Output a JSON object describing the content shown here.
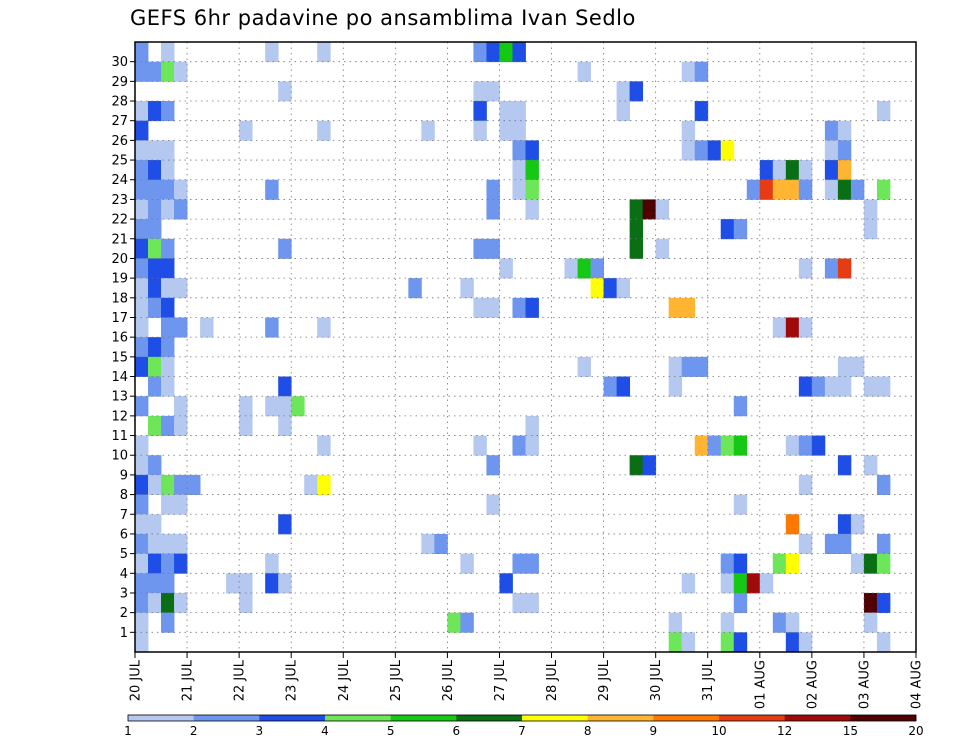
{
  "chart_data": {
    "type": "heatmap",
    "title": "GEFS 6hr padavine po ansamblima Ivan Sedlo",
    "x_tick_labels": [
      "20 JUL",
      "21 JUL",
      "22 JUL",
      "23 JUL",
      "24 JUL",
      "25 JUL",
      "26 JUL",
      "27 JUL",
      "28 JUL",
      "29 JUL",
      "30 JUL",
      "31 JUL",
      "01 AUG",
      "02 AUG",
      "03 AUG",
      "04 AUG"
    ],
    "y_tick_labels": [
      "1",
      "2",
      "3",
      "4",
      "5",
      "6",
      "7",
      "8",
      "9",
      "10",
      "11",
      "12",
      "13",
      "14",
      "15",
      "16",
      "17",
      "18",
      "19",
      "20",
      "21",
      "22",
      "23",
      "24",
      "25",
      "26",
      "27",
      "28",
      "29",
      "30"
    ],
    "grid": true,
    "colorbar": {
      "labels": [
        "1",
        "2",
        "3",
        "4",
        "5",
        "6",
        "7",
        "8",
        "9",
        "10",
        "12",
        "15",
        "20"
      ],
      "colors": [
        "#b4c8f0",
        "#6e96ee",
        "#1e4ee6",
        "#6ee65a",
        "#14c814",
        "#0a6e14",
        "#ffff00",
        "#ffb432",
        "#ff7800",
        "#e63c14",
        "#a00a0a",
        "#500000"
      ]
    },
    "cells": [
      [
        0,
        30,
        "#6e96ee"
      ],
      [
        0,
        29,
        "#6e96ee"
      ],
      [
        0,
        27,
        "#b4c8f0"
      ],
      [
        0,
        26,
        "#1e4ee6"
      ],
      [
        0,
        25,
        "#b4c8f0"
      ],
      [
        0,
        24,
        "#6e96ee"
      ],
      [
        0,
        23,
        "#6e96ee"
      ],
      [
        0,
        22,
        "#b4c8f0"
      ],
      [
        0,
        21,
        "#6e96ee"
      ],
      [
        0,
        20,
        "#1e4ee6"
      ],
      [
        0,
        19,
        "#6e96ee"
      ],
      [
        0,
        18,
        "#b4c8f0"
      ],
      [
        0,
        17,
        "#b4c8f0"
      ],
      [
        0,
        16,
        "#b4c8f0"
      ],
      [
        0,
        15,
        "#6e96ee"
      ],
      [
        0,
        14,
        "#1e4ee6"
      ],
      [
        0,
        12,
        "#6e96ee"
      ],
      [
        0,
        10,
        "#b4c8f0"
      ],
      [
        0,
        9,
        "#b4c8f0"
      ],
      [
        0,
        8,
        "#1e4ee6"
      ],
      [
        0,
        7,
        "#6e96ee"
      ],
      [
        0,
        6,
        "#b4c8f0"
      ],
      [
        0,
        5,
        "#6e96ee"
      ],
      [
        0,
        4,
        "#b4c8f0"
      ],
      [
        0,
        3,
        "#6e96ee"
      ],
      [
        0,
        2,
        "#6e96ee"
      ],
      [
        0,
        1,
        "#b4c8f0"
      ],
      [
        0,
        0,
        "#b4c8f0"
      ],
      [
        1,
        29,
        "#6e96ee"
      ],
      [
        1,
        27,
        "#1e4ee6"
      ],
      [
        1,
        25,
        "#b4c8f0"
      ],
      [
        1,
        24,
        "#1e4ee6"
      ],
      [
        1,
        23,
        "#6e96ee"
      ],
      [
        1,
        22,
        "#6e96ee"
      ],
      [
        1,
        21,
        "#6e96ee"
      ],
      [
        1,
        20,
        "#6ee65a"
      ],
      [
        1,
        19,
        "#1e4ee6"
      ],
      [
        1,
        18,
        "#1e4ee6"
      ],
      [
        1,
        17,
        "#6e96ee"
      ],
      [
        1,
        15,
        "#1e4ee6"
      ],
      [
        1,
        14,
        "#6ee65a"
      ],
      [
        1,
        13,
        "#6e96ee"
      ],
      [
        1,
        11,
        "#6ee65a"
      ],
      [
        1,
        9,
        "#6e96ee"
      ],
      [
        1,
        8,
        "#b4c8f0"
      ],
      [
        1,
        6,
        "#b4c8f0"
      ],
      [
        1,
        5,
        "#b4c8f0"
      ],
      [
        1,
        4,
        "#1e4ee6"
      ],
      [
        1,
        3,
        "#6e96ee"
      ],
      [
        1,
        2,
        "#b4c8f0"
      ],
      [
        2,
        30,
        "#b4c8f0"
      ],
      [
        2,
        29,
        "#6ee65a"
      ],
      [
        2,
        27,
        "#6e96ee"
      ],
      [
        2,
        25,
        "#b4c8f0"
      ],
      [
        2,
        24,
        "#b4c8f0"
      ],
      [
        2,
        23,
        "#6e96ee"
      ],
      [
        2,
        22,
        "#b4c8f0"
      ],
      [
        2,
        20,
        "#6e96ee"
      ],
      [
        2,
        19,
        "#1e4ee6"
      ],
      [
        2,
        18,
        "#b4c8f0"
      ],
      [
        2,
        17,
        "#1e4ee6"
      ],
      [
        2,
        16,
        "#6e96ee"
      ],
      [
        2,
        15,
        "#6e96ee"
      ],
      [
        2,
        14,
        "#b4c8f0"
      ],
      [
        2,
        13,
        "#b4c8f0"
      ],
      [
        2,
        11,
        "#6e96ee"
      ],
      [
        2,
        8,
        "#6ee65a"
      ],
      [
        2,
        7,
        "#b4c8f0"
      ],
      [
        2,
        5,
        "#b4c8f0"
      ],
      [
        2,
        4,
        "#6e96ee"
      ],
      [
        2,
        3,
        "#6e96ee"
      ],
      [
        2,
        2,
        "#0a6e14"
      ],
      [
        2,
        1,
        "#6e96ee"
      ],
      [
        3,
        29,
        "#b4c8f0"
      ],
      [
        3,
        23,
        "#b4c8f0"
      ],
      [
        3,
        22,
        "#6e96ee"
      ],
      [
        3,
        18,
        "#b4c8f0"
      ],
      [
        3,
        16,
        "#6e96ee"
      ],
      [
        3,
        12,
        "#b4c8f0"
      ],
      [
        3,
        11,
        "#b4c8f0"
      ],
      [
        3,
        8,
        "#6e96ee"
      ],
      [
        3,
        7,
        "#b4c8f0"
      ],
      [
        3,
        5,
        "#b4c8f0"
      ],
      [
        3,
        4,
        "#1e4ee6"
      ],
      [
        3,
        2,
        "#b4c8f0"
      ],
      [
        4,
        8,
        "#6e96ee"
      ],
      [
        5,
        16,
        "#b4c8f0"
      ],
      [
        7,
        3,
        "#b4c8f0"
      ],
      [
        8,
        26,
        "#b4c8f0"
      ],
      [
        8,
        12,
        "#b4c8f0"
      ],
      [
        8,
        11,
        "#b4c8f0"
      ],
      [
        8,
        3,
        "#b4c8f0"
      ],
      [
        8,
        2,
        "#b4c8f0"
      ],
      [
        10,
        30,
        "#b4c8f0"
      ],
      [
        10,
        23,
        "#6e96ee"
      ],
      [
        10,
        16,
        "#6e96ee"
      ],
      [
        10,
        12,
        "#b4c8f0"
      ],
      [
        10,
        4,
        "#b4c8f0"
      ],
      [
        10,
        3,
        "#1e4ee6"
      ],
      [
        11,
        28,
        "#b4c8f0"
      ],
      [
        11,
        20,
        "#6e96ee"
      ],
      [
        11,
        13,
        "#1e4ee6"
      ],
      [
        11,
        12,
        "#b4c8f0"
      ],
      [
        11,
        11,
        "#b4c8f0"
      ],
      [
        11,
        6,
        "#1e4ee6"
      ],
      [
        11,
        3,
        "#b4c8f0"
      ],
      [
        12,
        12,
        "#6ee65a"
      ],
      [
        13,
        8,
        "#b4c8f0"
      ],
      [
        14,
        30,
        "#b4c8f0"
      ],
      [
        14,
        26,
        "#b4c8f0"
      ],
      [
        14,
        16,
        "#b4c8f0"
      ],
      [
        14,
        10,
        "#b4c8f0"
      ],
      [
        14,
        8,
        "#ffff00"
      ],
      [
        21,
        18,
        "#6e96ee"
      ],
      [
        22,
        26,
        "#b4c8f0"
      ],
      [
        22,
        5,
        "#b4c8f0"
      ],
      [
        23,
        5,
        "#6e96ee"
      ],
      [
        24,
        1,
        "#6ee65a"
      ],
      [
        25,
        18,
        "#b4c8f0"
      ],
      [
        25,
        4,
        "#b4c8f0"
      ],
      [
        25,
        1,
        "#6e96ee"
      ],
      [
        26,
        30,
        "#6e96ee"
      ],
      [
        26,
        28,
        "#b4c8f0"
      ],
      [
        26,
        27,
        "#1e4ee6"
      ],
      [
        26,
        26,
        "#b4c8f0"
      ],
      [
        26,
        20,
        "#6e96ee"
      ],
      [
        26,
        17,
        "#b4c8f0"
      ],
      [
        26,
        10,
        "#b4c8f0"
      ],
      [
        27,
        30,
        "#1e4ee6"
      ],
      [
        27,
        28,
        "#b4c8f0"
      ],
      [
        27,
        23,
        "#6e96ee"
      ],
      [
        27,
        22,
        "#6e96ee"
      ],
      [
        27,
        20,
        "#6e96ee"
      ],
      [
        27,
        17,
        "#b4c8f0"
      ],
      [
        27,
        9,
        "#6e96ee"
      ],
      [
        27,
        7,
        "#b4c8f0"
      ],
      [
        28,
        30,
        "#14c814"
      ],
      [
        28,
        27,
        "#b4c8f0"
      ],
      [
        28,
        26,
        "#b4c8f0"
      ],
      [
        28,
        19,
        "#b4c8f0"
      ],
      [
        28,
        3,
        "#1e4ee6"
      ],
      [
        29,
        30,
        "#1e4ee6"
      ],
      [
        29,
        27,
        "#b4c8f0"
      ],
      [
        29,
        26,
        "#b4c8f0"
      ],
      [
        29,
        25,
        "#6e96ee"
      ],
      [
        29,
        24,
        "#b4c8f0"
      ],
      [
        29,
        23,
        "#b4c8f0"
      ],
      [
        29,
        17,
        "#6e96ee"
      ],
      [
        29,
        10,
        "#6e96ee"
      ],
      [
        29,
        4,
        "#6e96ee"
      ],
      [
        29,
        2,
        "#b4c8f0"
      ],
      [
        30,
        25,
        "#1e4ee6"
      ],
      [
        30,
        24,
        "#14c814"
      ],
      [
        30,
        23,
        "#6ee65a"
      ],
      [
        30,
        22,
        "#b4c8f0"
      ],
      [
        30,
        17,
        "#1e4ee6"
      ],
      [
        30,
        11,
        "#b4c8f0"
      ],
      [
        30,
        10,
        "#b4c8f0"
      ],
      [
        30,
        4,
        "#6e96ee"
      ],
      [
        30,
        2,
        "#b4c8f0"
      ],
      [
        33,
        19,
        "#b4c8f0"
      ],
      [
        34,
        19,
        "#14c814"
      ],
      [
        35,
        19,
        "#6e96ee"
      ],
      [
        35,
        18,
        "#ffff00"
      ],
      [
        34,
        29,
        "#b4c8f0"
      ],
      [
        34,
        14,
        "#b4c8f0"
      ],
      [
        36,
        18,
        "#1e4ee6"
      ],
      [
        36,
        13,
        "#6e96ee"
      ],
      [
        37,
        18,
        "#b4c8f0"
      ],
      [
        37,
        13,
        "#1e4ee6"
      ],
      [
        37,
        28,
        "#b4c8f0"
      ],
      [
        37,
        27,
        "#b4c8f0"
      ],
      [
        38,
        28,
        "#1e4ee6"
      ],
      [
        38,
        22,
        "#0a6e14"
      ],
      [
        38,
        21,
        "#0a6e14"
      ],
      [
        38,
        20,
        "#0a6e14"
      ],
      [
        38,
        9,
        "#0a6e14"
      ],
      [
        39,
        22,
        "#500000"
      ],
      [
        39,
        9,
        "#1e4ee6"
      ],
      [
        40,
        22,
        "#b4c8f0"
      ],
      [
        40,
        20,
        "#b4c8f0"
      ],
      [
        41,
        17,
        "#ffb432"
      ],
      [
        41,
        14,
        "#b4c8f0"
      ],
      [
        41,
        13,
        "#b4c8f0"
      ],
      [
        41,
        1,
        "#b4c8f0"
      ],
      [
        41,
        0,
        "#6ee65a"
      ],
      [
        42,
        17,
        "#ffb432"
      ],
      [
        42,
        14,
        "#6e96ee"
      ],
      [
        42,
        29,
        "#b4c8f0"
      ],
      [
        42,
        26,
        "#b4c8f0"
      ],
      [
        42,
        25,
        "#b4c8f0"
      ],
      [
        42,
        3,
        "#b4c8f0"
      ],
      [
        42,
        0,
        "#b4c8f0"
      ],
      [
        43,
        29,
        "#6e96ee"
      ],
      [
        43,
        27,
        "#1e4ee6"
      ],
      [
        43,
        25,
        "#6e96ee"
      ],
      [
        43,
        14,
        "#6e96ee"
      ],
      [
        43,
        10,
        "#ffb432"
      ],
      [
        44,
        25,
        "#1e4ee6"
      ],
      [
        44,
        10,
        "#6e96ee"
      ],
      [
        45,
        25,
        "#ffff00"
      ],
      [
        45,
        21,
        "#1e4ee6"
      ],
      [
        45,
        10,
        "#6ee65a"
      ],
      [
        45,
        4,
        "#6e96ee"
      ],
      [
        45,
        3,
        "#b4c8f0"
      ],
      [
        45,
        1,
        "#b4c8f0"
      ],
      [
        45,
        0,
        "#6ee65a"
      ],
      [
        46,
        21,
        "#6e96ee"
      ],
      [
        46,
        12,
        "#6e96ee"
      ],
      [
        46,
        10,
        "#14c814"
      ],
      [
        46,
        7,
        "#b4c8f0"
      ],
      [
        46,
        4,
        "#1e4ee6"
      ],
      [
        46,
        3,
        "#14c814"
      ],
      [
        46,
        2,
        "#6e96ee"
      ],
      [
        46,
        0,
        "#1e4ee6"
      ],
      [
        47,
        23,
        "#6e96ee"
      ],
      [
        47,
        3,
        "#a00a0a"
      ],
      [
        48,
        24,
        "#1e4ee6"
      ],
      [
        48,
        23,
        "#e63c14"
      ],
      [
        48,
        3,
        "#b4c8f0"
      ],
      [
        49,
        24,
        "#b4c8f0"
      ],
      [
        49,
        23,
        "#ffb432"
      ],
      [
        49,
        4,
        "#6ee65a"
      ],
      [
        49,
        1,
        "#6e96ee"
      ],
      [
        49,
        16,
        "#b4c8f0"
      ],
      [
        50,
        24,
        "#0a6e14"
      ],
      [
        50,
        23,
        "#ffb432"
      ],
      [
        50,
        16,
        "#a00a0a"
      ],
      [
        50,
        10,
        "#b4c8f0"
      ],
      [
        50,
        6,
        "#ff7800"
      ],
      [
        50,
        4,
        "#ffff00"
      ],
      [
        50,
        1,
        "#b4c8f0"
      ],
      [
        50,
        0,
        "#1e4ee6"
      ],
      [
        51,
        24,
        "#b4c8f0"
      ],
      [
        51,
        23,
        "#6e96ee"
      ],
      [
        51,
        19,
        "#b4c8f0"
      ],
      [
        51,
        16,
        "#b4c8f0"
      ],
      [
        51,
        13,
        "#1e4ee6"
      ],
      [
        51,
        10,
        "#6e96ee"
      ],
      [
        51,
        8,
        "#b4c8f0"
      ],
      [
        51,
        5,
        "#b4c8f0"
      ],
      [
        51,
        0,
        "#b4c8f0"
      ],
      [
        52,
        13,
        "#6e96ee"
      ],
      [
        52,
        10,
        "#1e4ee6"
      ],
      [
        53,
        26,
        "#6e96ee"
      ],
      [
        53,
        25,
        "#b4c8f0"
      ],
      [
        53,
        24,
        "#1e4ee6"
      ],
      [
        53,
        23,
        "#b4c8f0"
      ],
      [
        53,
        19,
        "#6e96ee"
      ],
      [
        53,
        13,
        "#b4c8f0"
      ],
      [
        53,
        5,
        "#6e96ee"
      ],
      [
        54,
        26,
        "#b4c8f0"
      ],
      [
        54,
        25,
        "#6e96ee"
      ],
      [
        54,
        24,
        "#ffb432"
      ],
      [
        54,
        23,
        "#0a6e14"
      ],
      [
        54,
        19,
        "#e63c14"
      ],
      [
        54,
        14,
        "#b4c8f0"
      ],
      [
        54,
        13,
        "#b4c8f0"
      ],
      [
        54,
        9,
        "#1e4ee6"
      ],
      [
        54,
        6,
        "#1e4ee6"
      ],
      [
        54,
        5,
        "#6e96ee"
      ],
      [
        55,
        23,
        "#6e96ee"
      ],
      [
        55,
        14,
        "#b4c8f0"
      ],
      [
        55,
        6,
        "#b4c8f0"
      ],
      [
        55,
        4,
        "#b4c8f0"
      ],
      [
        56,
        22,
        "#b4c8f0"
      ],
      [
        56,
        21,
        "#b4c8f0"
      ],
      [
        56,
        13,
        "#b4c8f0"
      ],
      [
        56,
        9,
        "#b4c8f0"
      ],
      [
        56,
        4,
        "#0a6e14"
      ],
      [
        56,
        2,
        "#500000"
      ],
      [
        56,
        1,
        "#b4c8f0"
      ],
      [
        57,
        27,
        "#b4c8f0"
      ],
      [
        57,
        23,
        "#6ee65a"
      ],
      [
        57,
        13,
        "#b4c8f0"
      ],
      [
        57,
        8,
        "#6e96ee"
      ],
      [
        57,
        5,
        "#6e96ee"
      ],
      [
        57,
        4,
        "#6ee65a"
      ],
      [
        57,
        2,
        "#1e4ee6"
      ],
      [
        57,
        0,
        "#b4c8f0"
      ]
    ]
  }
}
